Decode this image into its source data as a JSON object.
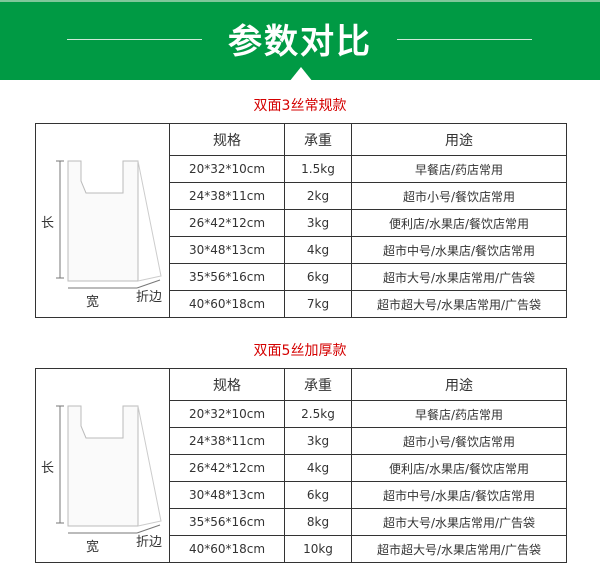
{
  "banner": {
    "title": "参数对比",
    "color": "#009a44"
  },
  "headers": {
    "spec": "规格",
    "weight": "承重",
    "usage": "用途"
  },
  "diagram": {
    "length": "长",
    "width": "宽",
    "fold": "折边"
  },
  "sections": [
    {
      "title": "双面3丝常规款",
      "rows": [
        {
          "spec": "20*32*10cm",
          "weight": "1.5kg",
          "usage": "早餐店/药店常用"
        },
        {
          "spec": "24*38*11cm",
          "weight": "2kg",
          "usage": "超市小号/餐饮店常用"
        },
        {
          "spec": "26*42*12cm",
          "weight": "3kg",
          "usage": "便利店/水果店/餐饮店常用"
        },
        {
          "spec": "30*48*13cm",
          "weight": "4kg",
          "usage": "超市中号/水果店/餐饮店常用"
        },
        {
          "spec": "35*56*16cm",
          "weight": "6kg",
          "usage": "超市大号/水果店常用/广告袋"
        },
        {
          "spec": "40*60*18cm",
          "weight": "7kg",
          "usage": "超市超大号/水果店常用/广告袋"
        }
      ]
    },
    {
      "title": "双面5丝加厚款",
      "rows": [
        {
          "spec": "20*32*10cm",
          "weight": "2.5kg",
          "usage": "早餐店/药店常用"
        },
        {
          "spec": "24*38*11cm",
          "weight": "3kg",
          "usage": "超市小号/餐饮店常用"
        },
        {
          "spec": "26*42*12cm",
          "weight": "4kg",
          "usage": "便利店/水果店/餐饮店常用"
        },
        {
          "spec": "30*48*13cm",
          "weight": "6kg",
          "usage": "超市中号/水果店/餐饮店常用"
        },
        {
          "spec": "35*56*16cm",
          "weight": "8kg",
          "usage": "超市大号/水果店常用/广告袋"
        },
        {
          "spec": "40*60*18cm",
          "weight": "10kg",
          "usage": "超市超大号/水果店常用/广告袋"
        }
      ]
    }
  ]
}
